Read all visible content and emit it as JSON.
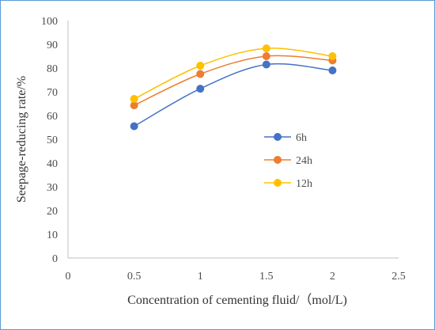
{
  "chart_data": {
    "type": "line",
    "xlabel": "Concentration of cementing fluid/（mol/L)",
    "ylabel": "Seepage-reducing rate/%",
    "xlim": [
      0,
      2.5
    ],
    "ylim": [
      0,
      100
    ],
    "xticks": [
      0,
      0.5,
      1,
      1.5,
      2,
      2.5
    ],
    "yticks": [
      0,
      10,
      20,
      30,
      40,
      50,
      60,
      70,
      80,
      90,
      100
    ],
    "x": [
      0.5,
      1,
      1.5,
      2
    ],
    "series": [
      {
        "name": "6h",
        "color": "#4472c4",
        "values": [
          55.5,
          71.3,
          81.5,
          79.0
        ]
      },
      {
        "name": "24h",
        "color": "#ed7d31",
        "values": [
          64.3,
          77.5,
          85.0,
          83.2
        ]
      },
      {
        "name": "12h",
        "color": "#ffc000",
        "values": [
          67.0,
          81.0,
          88.3,
          85.0
        ]
      }
    ],
    "grid": false,
    "legend_position": "right-middle",
    "smooth": true
  }
}
